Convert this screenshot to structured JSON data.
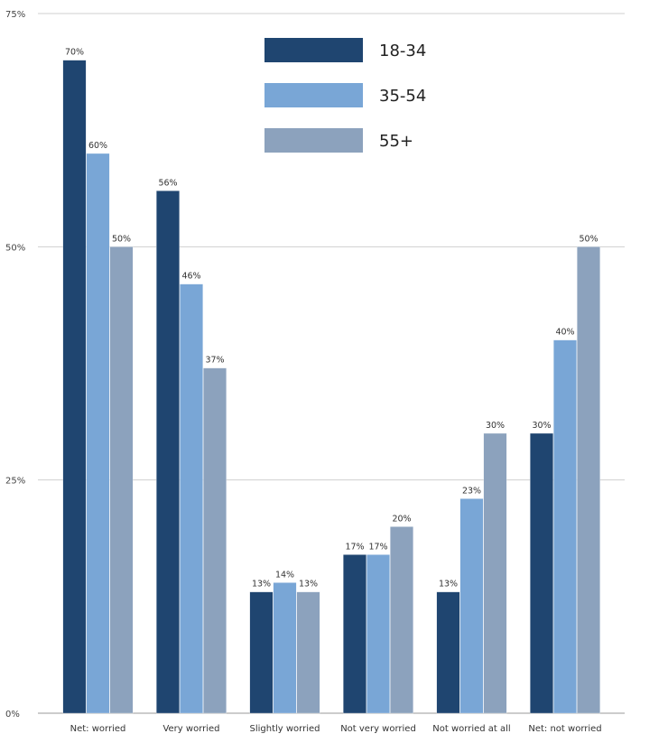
{
  "chart_data": {
    "type": "bar",
    "title": "",
    "xlabel": "",
    "ylabel": "",
    "ylim": [
      0,
      75
    ],
    "yticks": [
      {
        "value": 0,
        "label": "0%"
      },
      {
        "value": 25,
        "label": "25%"
      },
      {
        "value": 50,
        "label": "50%"
      },
      {
        "value": 75,
        "label": "75%"
      }
    ],
    "grid": true,
    "legend_position": "top-center",
    "categories": [
      "Net: worried",
      "Very worried",
      "Slightly worried",
      "Not very worried",
      "Not worried at all",
      "Net: not worried"
    ],
    "series": [
      {
        "name": "18-34",
        "color": "#1f4570",
        "values": [
          70,
          56,
          13,
          17,
          13,
          30
        ],
        "labels": [
          "70%",
          "56%",
          "13%",
          "17%",
          "13%",
          "30%"
        ]
      },
      {
        "name": "35-54",
        "color": "#79a6d6",
        "values": [
          60,
          46,
          14,
          17,
          23,
          40
        ],
        "labels": [
          "60%",
          "46%",
          "14%",
          "17%",
          "23%",
          "40%"
        ]
      },
      {
        "name": "55+",
        "color": "#8ca2bd",
        "values": [
          50,
          37,
          13,
          20,
          30,
          50
        ],
        "labels": [
          "50%",
          "37%",
          "13%",
          "20%",
          "30%",
          "50%"
        ]
      }
    ]
  }
}
